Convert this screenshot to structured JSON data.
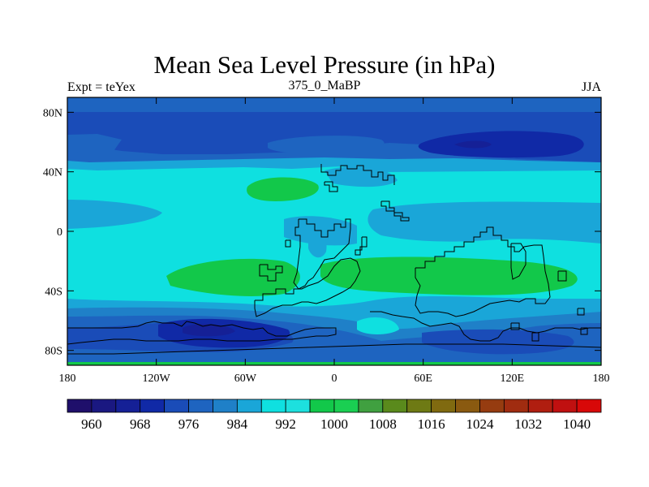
{
  "title": "Mean Sea Level Pressure (in hPa)",
  "subtitle_left": "Expt = teYex",
  "subtitle_center": "375_0_MaBP",
  "subtitle_right": "JJA",
  "map": {
    "lon_range": [
      -180,
      180
    ],
    "lat_range": [
      -90,
      90
    ],
    "x_ticks": [
      {
        "lon": -180,
        "label": "180"
      },
      {
        "lon": -120,
        "label": "120W"
      },
      {
        "lon": -60,
        "label": "60W"
      },
      {
        "lon": 0,
        "label": "0"
      },
      {
        "lon": 60,
        "label": "60E"
      },
      {
        "lon": 120,
        "label": "120E"
      },
      {
        "lon": 180,
        "label": "180"
      }
    ],
    "y_ticks": [
      {
        "lat": 80,
        "label": "80N"
      },
      {
        "lat": 40,
        "label": "40N"
      },
      {
        "lat": 0,
        "label": "0"
      },
      {
        "lat": -40,
        "label": "40S"
      },
      {
        "lat": -80,
        "label": "80S"
      }
    ]
  },
  "colorbar": {
    "colors": [
      "#1f0f6b",
      "#1a1881",
      "#152096",
      "#1029a6",
      "#1a4cb8",
      "#1e64c0",
      "#1f80c8",
      "#1aa6d8",
      "#0fe0e0",
      "#1de0de",
      "#12c84a",
      "#1acf52",
      "#40a040",
      "#5a8a1c",
      "#6e7a14",
      "#806a10",
      "#8a5a10",
      "#963c10",
      "#a02c10",
      "#b01e10",
      "#c01010",
      "#d80808"
    ],
    "labels": [
      "960",
      "968",
      "976",
      "984",
      "992",
      "1000",
      "1008",
      "1016",
      "1024",
      "1032",
      "1040"
    ]
  },
  "field_colors": {
    "c984": "#1a4cb8",
    "c988": "#1e64c0",
    "c992": "#1f80c8",
    "c996": "#1aa6d8",
    "c1000": "#0fe0e0",
    "c1008": "#12c84a",
    "c976": "#1029a6",
    "c968": "#152096"
  }
}
